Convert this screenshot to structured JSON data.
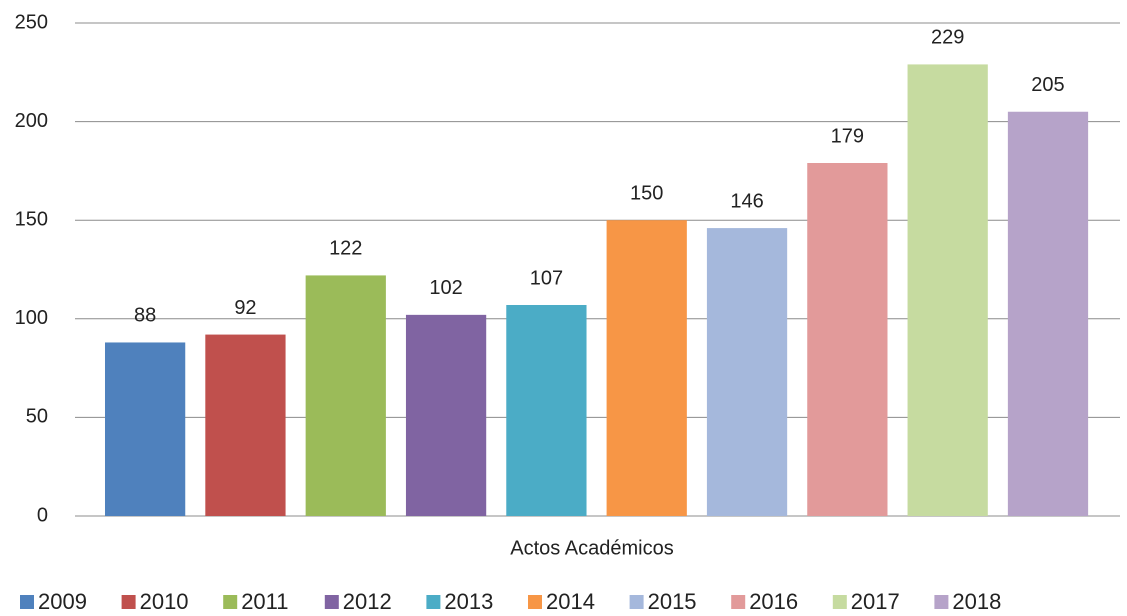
{
  "chart_data": {
    "type": "bar",
    "categories": [
      "Actos Académicos"
    ],
    "series": [
      {
        "name": "2009",
        "color": "#4f81bd",
        "values": [
          88
        ]
      },
      {
        "name": "2010",
        "color": "#c0504d",
        "values": [
          92
        ]
      },
      {
        "name": "2011",
        "color": "#9bbb59",
        "values": [
          122
        ]
      },
      {
        "name": "2012",
        "color": "#8064a2",
        "values": [
          102
        ]
      },
      {
        "name": "2013",
        "color": "#4bacc6",
        "values": [
          107
        ]
      },
      {
        "name": "2014",
        "color": "#f79646",
        "values": [
          150
        ]
      },
      {
        "name": "2015",
        "color": "#a5b8dc",
        "values": [
          146
        ]
      },
      {
        "name": "2016",
        "color": "#e29a9a",
        "values": [
          179
        ]
      },
      {
        "name": "2017",
        "color": "#c6dba0",
        "values": [
          229
        ]
      },
      {
        "name": "2018",
        "color": "#b6a3c9",
        "values": [
          205
        ]
      }
    ],
    "ylim": [
      0,
      250
    ],
    "yticks": [
      0,
      50,
      100,
      150,
      200,
      250
    ],
    "grid": true,
    "legend": "bottom"
  }
}
